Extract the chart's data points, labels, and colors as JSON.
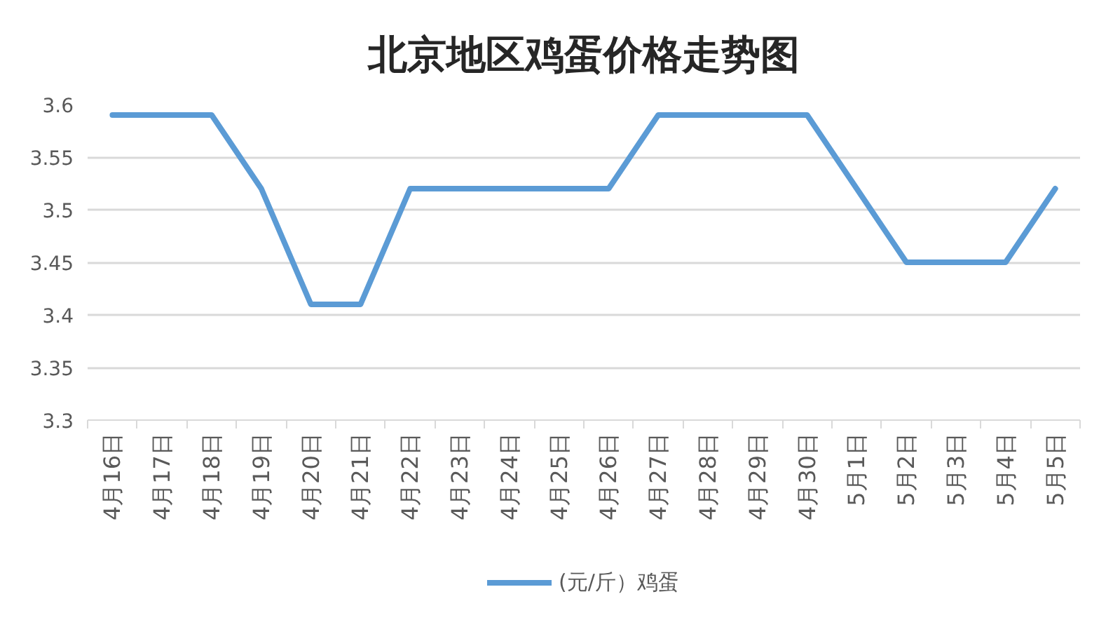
{
  "chart_data": {
    "type": "line",
    "title": "北京地区鸡蛋价格走势图",
    "categories": [
      "4月16日",
      "4月17日",
      "4月18日",
      "4月19日",
      "4月20日",
      "4月21日",
      "4月22日",
      "4月23日",
      "4月24日",
      "4月25日",
      "4月26日",
      "4月27日",
      "4月28日",
      "4月29日",
      "4月30日",
      "5月1日",
      "5月2日",
      "5月3日",
      "5月4日",
      "5月5日"
    ],
    "series": [
      {
        "name": "(元/斤）鸡蛋",
        "color": "#5b9bd5",
        "values": [
          3.59,
          3.59,
          3.59,
          3.52,
          3.41,
          3.41,
          3.52,
          3.52,
          3.52,
          3.52,
          3.52,
          3.59,
          3.59,
          3.59,
          3.59,
          3.52,
          3.45,
          3.45,
          3.45,
          3.52
        ]
      }
    ],
    "ylim": [
      3.3,
      3.6
    ],
    "yticks": [
      3.3,
      3.35,
      3.4,
      3.45,
      3.5,
      3.55,
      3.6
    ],
    "grid": "y",
    "legend": "bottom"
  }
}
